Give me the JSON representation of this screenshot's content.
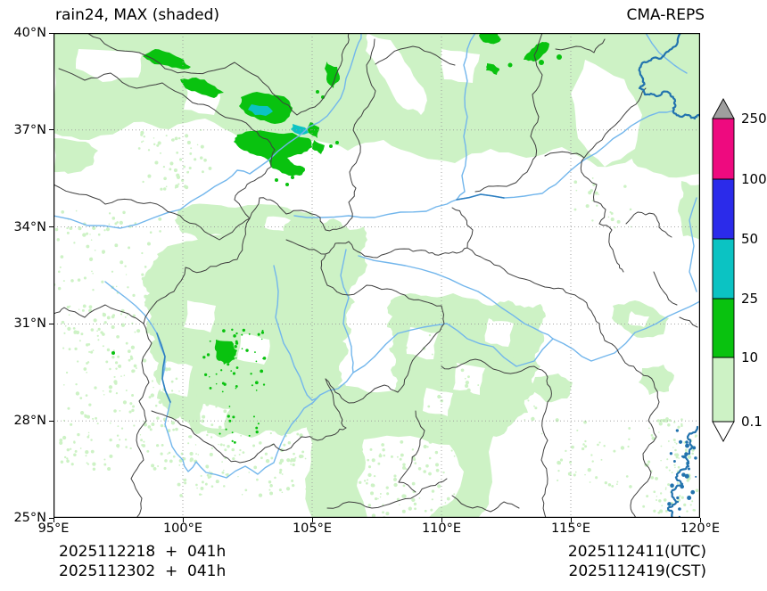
{
  "title_left": "rain24, MAX (shaded)",
  "title_right": "CMA-REPS",
  "footer": {
    "left_line1": "2025112218  +  041h",
    "left_line2": "2025112302  +  041h",
    "right_line1": "2025112411(UTC)",
    "right_line2": "2025112419(CST)"
  },
  "axis": {
    "x_ticks": [
      {
        "v": 95,
        "label": "95°E"
      },
      {
        "v": 100,
        "label": "100°E"
      },
      {
        "v": 105,
        "label": "105°E"
      },
      {
        "v": 110,
        "label": "110°E"
      },
      {
        "v": 115,
        "label": "115°E"
      },
      {
        "v": 120,
        "label": "120°E"
      }
    ],
    "y_ticks": [
      {
        "v": 40,
        "label": "40°N"
      },
      {
        "v": 37,
        "label": "37°N"
      },
      {
        "v": 34,
        "label": "34°N"
      },
      {
        "v": 31,
        "label": "31°N"
      },
      {
        "v": 28,
        "label": "28°N"
      },
      {
        "v": 25,
        "label": "25°N"
      }
    ]
  },
  "colorbar": {
    "boundary_labels_top_to_bottom": [
      "250",
      "100",
      "50",
      "25",
      "10",
      "0.1"
    ],
    "segment_colors_top_to_bottom": [
      "#ee0a7f",
      "#2b2bea",
      "#0bc3c3",
      "#09c20f",
      "#cdf2c5"
    ],
    "over_color": "#9e9e9e",
    "under_color": "#ffffff"
  },
  "colors": {
    "light_green": "#cdf2c5",
    "green": "#09c20f",
    "cyan": "#0bc3c3",
    "blue": "#2b2bea",
    "pink": "#ee0a7f",
    "over_gray": "#9e9e9e",
    "river": "#72b6ec",
    "river_dark": "#2e7fc0",
    "coast": "#2273ae",
    "border": "#3f3f3f",
    "grid": "#9a9a9a"
  },
  "chart_data": {
    "type": "map",
    "variable": "rain24",
    "statistic": "MAX (shaded)",
    "model": "CMA-REPS",
    "lon_range": [
      95,
      120
    ],
    "lat_range": [
      25,
      40
    ],
    "lon_ticks_deg_e": [
      95,
      100,
      105,
      110,
      115,
      120
    ],
    "lat_ticks_deg_n": [
      25,
      28,
      31,
      34,
      37,
      40
    ],
    "shading_levels": [
      0.1,
      10,
      25,
      50,
      100,
      250
    ],
    "shading_colors_low_to_high": [
      "#cdf2c5",
      "#09c20f",
      "#0bc3c3",
      "#2b2bea",
      "#ee0a7f"
    ],
    "over_color": "#9e9e9e",
    "init_runs": [
      "2025112218",
      "2025112302"
    ],
    "lead_time": "041h",
    "valid_time_utc": "2025112411(UTC)",
    "valid_time_cst": "2025112419(CST)",
    "notable_shading": [
      {
        "area": "NW band near 99-104E, 36-39.5N",
        "level": "10-25 with 25-50 cores near 102.5E 37.4N"
      },
      {
        "area": "central Sichuan near 101.5E 30.2N",
        "level": "10-25 cluster"
      },
      {
        "area": "north China near 111.5-114.5E, 38.7-40N",
        "level": "small 10-25 patches"
      },
      {
        "area": "widespread 0.1-10 over Sichuan basin, NW China, Guizhou, Hubei and Bohai area",
        "level": "0.1-10"
      }
    ]
  }
}
